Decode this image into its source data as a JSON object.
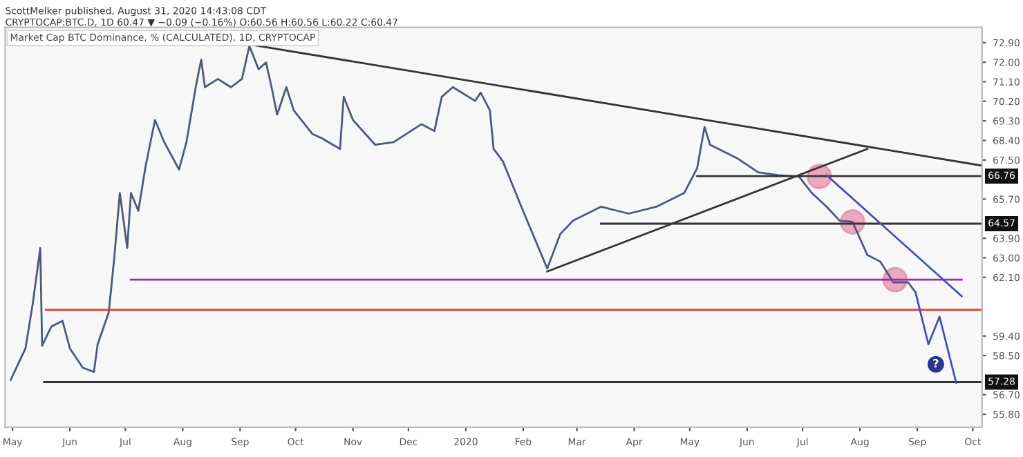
{
  "chart_data": {
    "type": "line",
    "title": "ScottMelker published, August 31, 2020 14:43:08 CDT",
    "subtitle": "CRYPTOCAP:BTC.D, 1D 60.47 ▼ −0.09 (−0.16%) O:60.56 H:60.56 L:60.22 C:60.47",
    "annotations": [
      "Market Cap BTC Dominance, % (CALCULATED), 1D, CRYPTOCAP",
      {
        "text": "66.76",
        "x": "2020-10-06",
        "y": 66.76
      },
      {
        "text": "64.57",
        "x": "2020-10-06",
        "y": 64.57
      },
      {
        "text": "57.28",
        "x": "2020-10-06",
        "y": 57.28
      },
      {
        "text": "?",
        "x": "2020-09-11",
        "y": 58.1
      }
    ],
    "xlim": [
      "2019-04-27",
      "2020-10-06"
    ],
    "xticks": [
      {
        "value": "2019-05-01",
        "label": "May"
      },
      {
        "value": "2019-06-01",
        "label": "Jun"
      },
      {
        "value": "2019-07-01",
        "label": "Jul"
      },
      {
        "value": "2019-08-01",
        "label": "Aug"
      },
      {
        "value": "2019-09-01",
        "label": "Sep"
      },
      {
        "value": "2019-10-01",
        "label": "Oct"
      },
      {
        "value": "2019-11-01",
        "label": "Nov"
      },
      {
        "value": "2019-12-01",
        "label": "Dec"
      },
      {
        "value": "2020-01-01",
        "label": "2020"
      },
      {
        "value": "2020-02-01",
        "label": "Feb"
      },
      {
        "value": "2020-03-01",
        "label": "Mar"
      },
      {
        "value": "2020-04-01",
        "label": "Apr"
      },
      {
        "value": "2020-05-01",
        "label": "May"
      },
      {
        "value": "2020-06-01",
        "label": "Jun"
      },
      {
        "value": "2020-07-01",
        "label": "Jul"
      },
      {
        "value": "2020-08-01",
        "label": "Aug"
      },
      {
        "value": "2020-09-01",
        "label": "Sep"
      },
      {
        "value": "2020-10-01",
        "label": "Oct"
      }
    ],
    "ylim": [
      55.2,
      73.6
    ],
    "yticks": [
      {
        "value": 72.9,
        "label": "72.90"
      },
      {
        "value": 72.0,
        "label": "72.00"
      },
      {
        "value": 71.1,
        "label": "71.10"
      },
      {
        "value": 70.2,
        "label": "70.20"
      },
      {
        "value": 69.3,
        "label": "69.30"
      },
      {
        "value": 68.4,
        "label": "68.40"
      },
      {
        "value": 67.5,
        "label": "67.50"
      },
      {
        "value": 65.7,
        "label": "65.70"
      },
      {
        "value": 63.9,
        "label": "63.90"
      },
      {
        "value": 63.0,
        "label": "63.00"
      },
      {
        "value": 62.1,
        "label": "62.10"
      },
      {
        "value": 59.4,
        "label": "59.40"
      },
      {
        "value": 58.5,
        "label": "58.50"
      },
      {
        "value": 56.7,
        "label": "56.70"
      },
      {
        "value": 55.8,
        "label": "55.80"
      }
    ],
    "grid": false,
    "series": [
      {
        "color": "#4a5a78",
        "x": [
          "2019-04-30",
          "2019-05-08",
          "2019-05-12",
          "2019-05-16",
          "2019-05-17",
          "2019-05-22",
          "2019-05-28",
          "2019-06-01",
          "2019-06-08",
          "2019-06-14",
          "2019-06-16",
          "2019-06-22",
          "2019-06-25",
          "2019-06-28",
          "2019-07-02",
          "2019-07-04",
          "2019-07-08",
          "2019-07-12",
          "2019-07-17",
          "2019-07-22",
          "2019-07-30",
          "2019-08-03",
          "2019-08-08",
          "2019-08-11",
          "2019-08-13",
          "2019-08-20",
          "2019-08-27",
          "2019-09-02",
          "2019-09-06",
          "2019-09-11",
          "2019-09-15",
          "2019-09-18",
          "2019-09-21",
          "2019-09-26",
          "2019-09-30",
          "2019-10-10",
          "2019-10-15",
          "2019-10-25",
          "2019-10-27",
          "2019-11-01",
          "2019-11-13",
          "2019-11-23",
          "2019-12-08",
          "2019-12-15",
          "2019-12-19",
          "2019-12-25",
          "2020-01-06",
          "2020-01-09",
          "2020-01-14",
          "2020-01-16",
          "2020-01-21",
          "2020-01-31",
          "2020-02-14",
          "2020-02-21",
          "2020-02-28",
          "2020-03-14",
          "2020-03-29",
          "2020-04-13",
          "2020-04-28",
          "2020-05-05",
          "2020-05-09",
          "2020-05-12",
          "2020-05-27",
          "2020-06-07",
          "2020-06-18",
          "2020-06-29",
          "2020-07-06",
          "2020-07-14",
          "2020-07-21",
          "2020-07-28",
          "2020-08-05",
          "2020-08-12",
          "2020-08-19",
          "2020-08-27",
          "2020-08-31"
        ],
        "values": [
          57.38,
          58.83,
          60.92,
          63.45,
          58.95,
          59.84,
          60.1,
          58.83,
          57.94,
          57.75,
          59.02,
          60.48,
          63.01,
          65.98,
          63.45,
          65.98,
          65.16,
          67.25,
          69.34,
          68.32,
          67.06,
          68.32,
          70.85,
          72.12,
          70.85,
          71.23,
          70.85,
          71.23,
          72.75,
          71.68,
          71.99,
          70.85,
          69.59,
          70.85,
          69.78,
          68.7,
          68.51,
          68.01,
          70.41,
          69.34,
          68.2,
          68.32,
          69.15,
          68.83,
          70.41,
          70.85,
          70.22,
          70.6,
          69.78,
          68.01,
          67.44,
          65.35,
          62.5,
          64.09,
          64.71,
          65.35,
          65.03,
          65.35,
          65.98,
          67.12,
          69.02,
          68.2,
          67.56,
          66.93,
          66.8,
          66.74,
          65.98,
          65.35,
          64.71,
          64.65,
          63.13,
          62.82,
          61.87,
          61.87,
          61.42
        ]
      },
      {
        "color": "#333333",
        "x": [
          "2019-09-06",
          "2020-10-06"
        ],
        "values": [
          72.82,
          67.24
        ]
      },
      {
        "color": "#333333",
        "x": [
          "2020-02-14",
          "2020-08-05"
        ],
        "values": [
          62.37,
          68.01
        ]
      },
      {
        "color": "#333333",
        "x": [
          "2020-05-05",
          "2020-10-06"
        ],
        "values": [
          66.76,
          66.76
        ]
      },
      {
        "color": "#333333",
        "x": [
          "2020-03-14",
          "2020-10-06"
        ],
        "values": [
          64.57,
          64.57
        ]
      },
      {
        "color": "#333333",
        "x": [
          "2019-05-18",
          "2020-10-06"
        ],
        "values": [
          57.28,
          57.28
        ]
      },
      {
        "color": "#9c27b0",
        "x": [
          "2019-07-04",
          "2020-09-25"
        ],
        "values": [
          61.99,
          61.99
        ]
      },
      {
        "color": "#e53935",
        "x": [
          "2019-05-19",
          "2020-10-06"
        ],
        "values": [
          60.6,
          60.6
        ]
      },
      {
        "color": "#3f51b5",
        "x": [
          "2020-07-14",
          "2020-09-25"
        ],
        "values": [
          66.8,
          61.23
        ]
      },
      {
        "color": "#3f51b5",
        "x": [
          "2020-08-31",
          "2020-09-07",
          "2020-09-13",
          "2020-09-22"
        ],
        "values": [
          61.42,
          59.02,
          60.29,
          57.25
        ]
      },
      {
        "type": "scatter",
        "marker": "circle",
        "color": "#e57398",
        "x": [
          "2020-07-10",
          "2020-07-28",
          "2020-08-20"
        ],
        "values": [
          66.74,
          64.65,
          61.99
        ]
      }
    ]
  }
}
